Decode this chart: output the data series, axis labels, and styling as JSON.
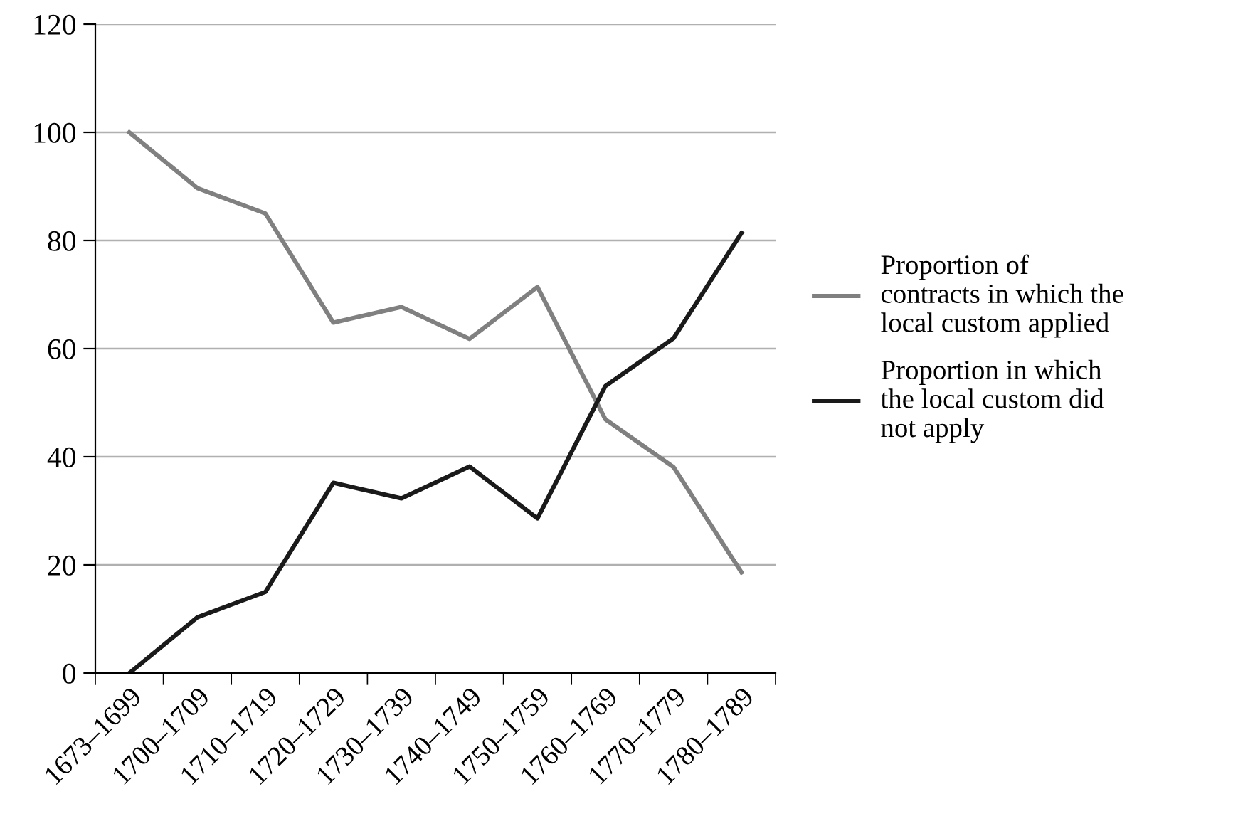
{
  "chart_data": {
    "type": "line",
    "categories": [
      "1673–1699",
      "1700–1709",
      "1710–1719",
      "1720–1729",
      "1730–1739",
      "1740–1749",
      "1750–1759",
      "1760–1769",
      "1770–1779",
      "1780–1789"
    ],
    "series": [
      {
        "name": "Proportion of contracts in which the local custom applied",
        "color": "#808080",
        "values": [
          100,
          89.7,
          85,
          64.8,
          67.7,
          61.8,
          71.4,
          46.9,
          38.1,
          18.6
        ]
      },
      {
        "name": "Proportion in which the local custom did not apply",
        "color": "#1a1a1a",
        "values": [
          0,
          10.3,
          15,
          35.2,
          32.3,
          38.2,
          28.6,
          53.1,
          61.9,
          81.4
        ]
      }
    ],
    "ylim": [
      0,
      120
    ],
    "yticks": [
      0,
      20,
      40,
      60,
      80,
      100,
      120
    ],
    "grid": "y",
    "legend": "right",
    "marker": "none",
    "line_style": "solid"
  }
}
